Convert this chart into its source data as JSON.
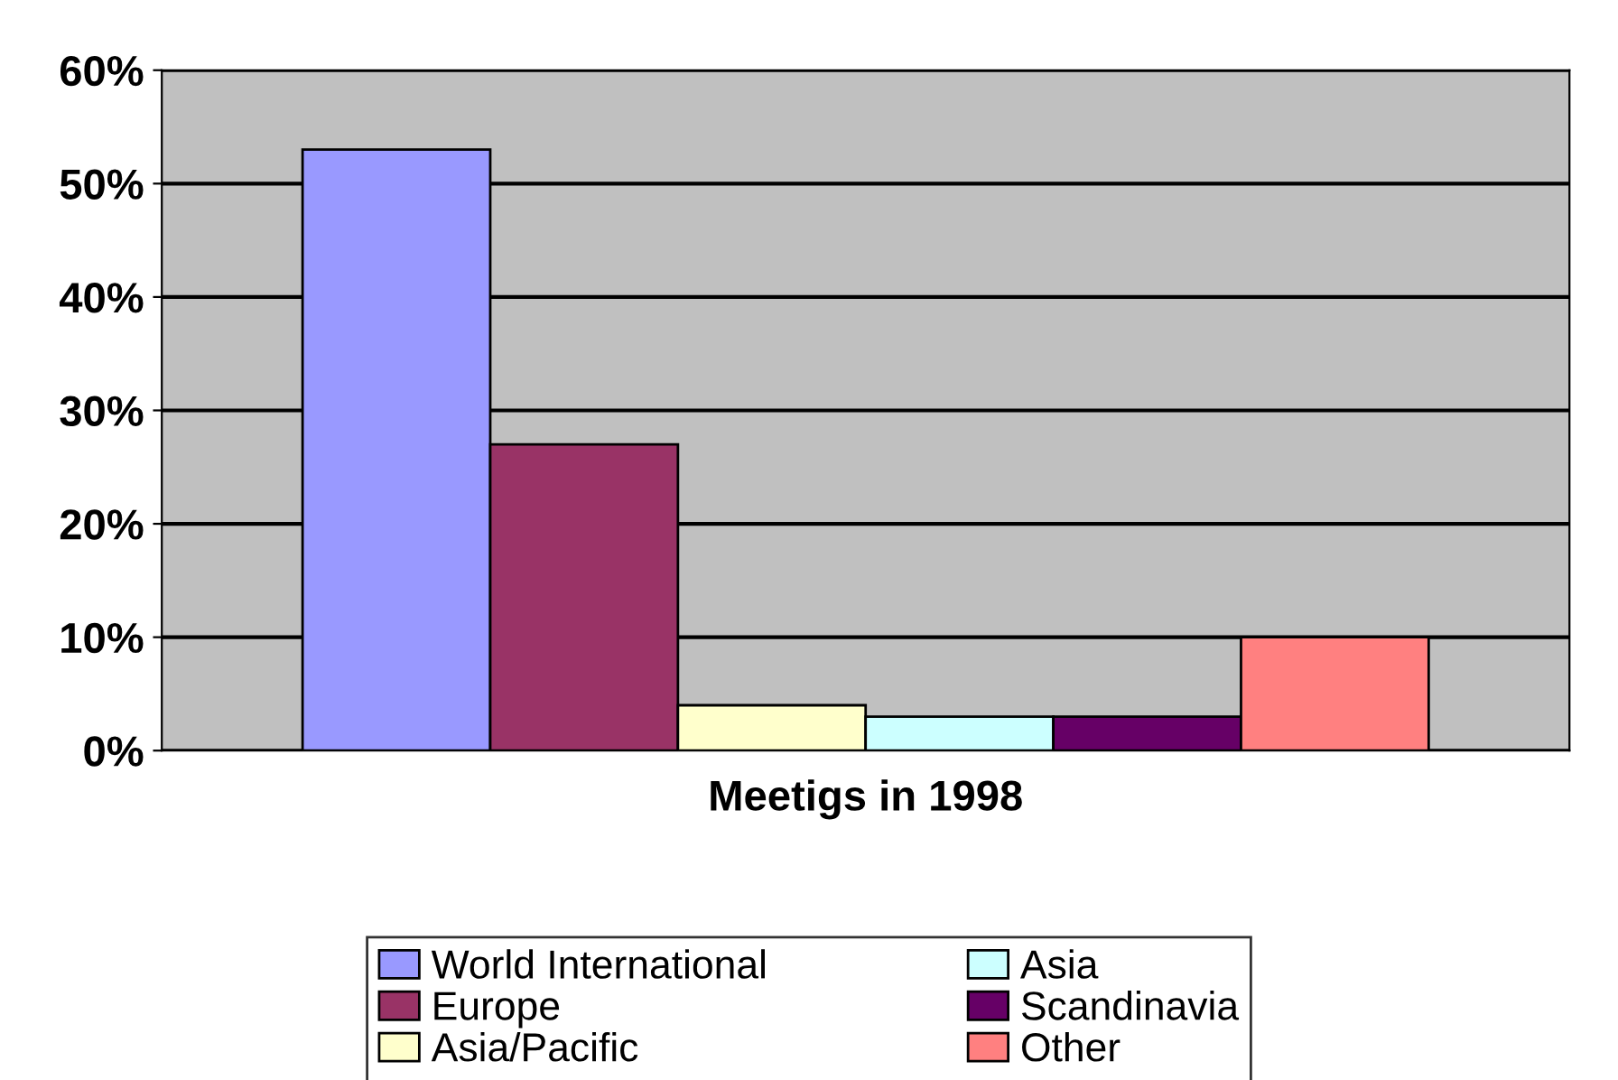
{
  "chart_data": {
    "type": "bar",
    "xlabel": "Meetigs in 1998",
    "categories": [
      null
    ],
    "series": [
      {
        "name": "World International",
        "color": "#9999ff",
        "values": [
          53
        ]
      },
      {
        "name": "Europe",
        "color": "#993366",
        "values": [
          27
        ]
      },
      {
        "name": "Asia/Pacific",
        "color": "#ffffcc",
        "values": [
          4
        ]
      },
      {
        "name": "Asia",
        "color": "#ccffff",
        "values": [
          3
        ]
      },
      {
        "name": "Scandinavia",
        "color": "#660066",
        "values": [
          3
        ]
      },
      {
        "name": "Other",
        "color": "#ff8080",
        "values": [
          10
        ]
      }
    ],
    "ylim": [
      0,
      60
    ],
    "yticks": [
      {
        "value": 0,
        "label": "0%"
      },
      {
        "value": 10,
        "label": "10%"
      },
      {
        "value": 20,
        "label": "20%"
      },
      {
        "value": 30,
        "label": "30%"
      },
      {
        "value": 40,
        "label": "40%"
      },
      {
        "value": 50,
        "label": "50%"
      },
      {
        "value": 60,
        "label": "60%"
      }
    ],
    "grid": "y",
    "legend": "bottom"
  }
}
